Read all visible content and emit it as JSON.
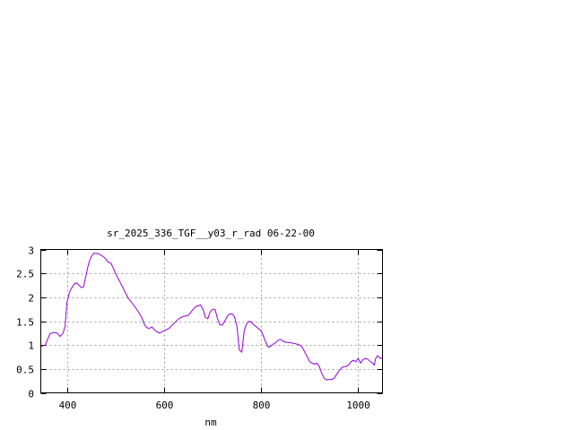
{
  "chart_data": {
    "type": "line",
    "title": "sr_2025_336_TGF__y03_r_rad 06-22-00",
    "xlabel": "nm",
    "ylabel": "",
    "xlim": [
      346,
      1050
    ],
    "ylim": [
      0,
      3
    ],
    "x_ticks": [
      400,
      600,
      800,
      1000
    ],
    "x_tick_labels": [
      "400",
      "600",
      "800",
      "1000"
    ],
    "y_ticks": [
      0,
      0.5,
      1,
      1.5,
      2,
      2.5,
      3
    ],
    "y_tick_labels": [
      "0",
      "0.5",
      "1",
      "1.5",
      "2",
      "2.5",
      "3"
    ],
    "grid": true,
    "line_color": "#9400d3",
    "series": [
      {
        "name": "",
        "x": [
          346,
          355,
          360,
          365,
          372,
          380,
          386,
          392,
          396,
          400,
          405,
          410,
          415,
          420,
          425,
          430,
          434,
          438,
          442,
          446,
          450,
          455,
          460,
          465,
          470,
          475,
          480,
          485,
          490,
          495,
          500,
          505,
          510,
          515,
          520,
          525,
          530,
          540,
          550,
          555,
          560,
          565,
          570,
          575,
          580,
          585,
          590,
          600,
          610,
          620,
          630,
          640,
          650,
          660,
          665,
          670,
          675,
          680,
          685,
          690,
          695,
          700,
          705,
          710,
          715,
          720,
          725,
          730,
          735,
          740,
          745,
          750,
          755,
          760,
          765,
          770,
          775,
          780,
          785,
          790,
          800,
          810,
          815,
          820,
          825,
          830,
          835,
          840,
          845,
          850,
          860,
          870,
          880,
          885,
          890,
          895,
          900,
          905,
          910,
          915,
          920,
          925,
          930,
          935,
          940,
          945,
          950,
          955,
          960,
          965,
          970,
          975,
          980,
          985,
          990,
          995,
          1000,
          1005,
          1010,
          1015,
          1020,
          1025,
          1030,
          1033,
          1036,
          1040,
          1045,
          1050
        ],
        "y": [
          0.97,
          1.0,
          1.12,
          1.24,
          1.26,
          1.25,
          1.18,
          1.25,
          1.4,
          1.9,
          2.1,
          2.2,
          2.28,
          2.3,
          2.25,
          2.2,
          2.22,
          2.4,
          2.6,
          2.75,
          2.85,
          2.92,
          2.92,
          2.91,
          2.88,
          2.85,
          2.8,
          2.73,
          2.72,
          2.62,
          2.5,
          2.4,
          2.3,
          2.2,
          2.1,
          2.0,
          1.93,
          1.8,
          1.65,
          1.55,
          1.42,
          1.36,
          1.35,
          1.38,
          1.32,
          1.28,
          1.25,
          1.3,
          1.35,
          1.45,
          1.55,
          1.6,
          1.62,
          1.75,
          1.8,
          1.82,
          1.84,
          1.75,
          1.58,
          1.55,
          1.7,
          1.75,
          1.75,
          1.55,
          1.42,
          1.42,
          1.5,
          1.6,
          1.65,
          1.65,
          1.6,
          1.4,
          0.9,
          0.85,
          1.3,
          1.45,
          1.5,
          1.48,
          1.42,
          1.38,
          1.3,
          1.05,
          0.95,
          0.98,
          1.02,
          1.05,
          1.1,
          1.12,
          1.08,
          1.06,
          1.05,
          1.03,
          1.0,
          0.95,
          0.85,
          0.75,
          0.65,
          0.62,
          0.6,
          0.62,
          0.55,
          0.4,
          0.3,
          0.27,
          0.28,
          0.28,
          0.3,
          0.38,
          0.45,
          0.52,
          0.55,
          0.55,
          0.58,
          0.65,
          0.68,
          0.65,
          0.72,
          0.62,
          0.7,
          0.72,
          0.7,
          0.65,
          0.62,
          0.58,
          0.72,
          0.78,
          0.72,
          0.74
        ]
      }
    ]
  }
}
